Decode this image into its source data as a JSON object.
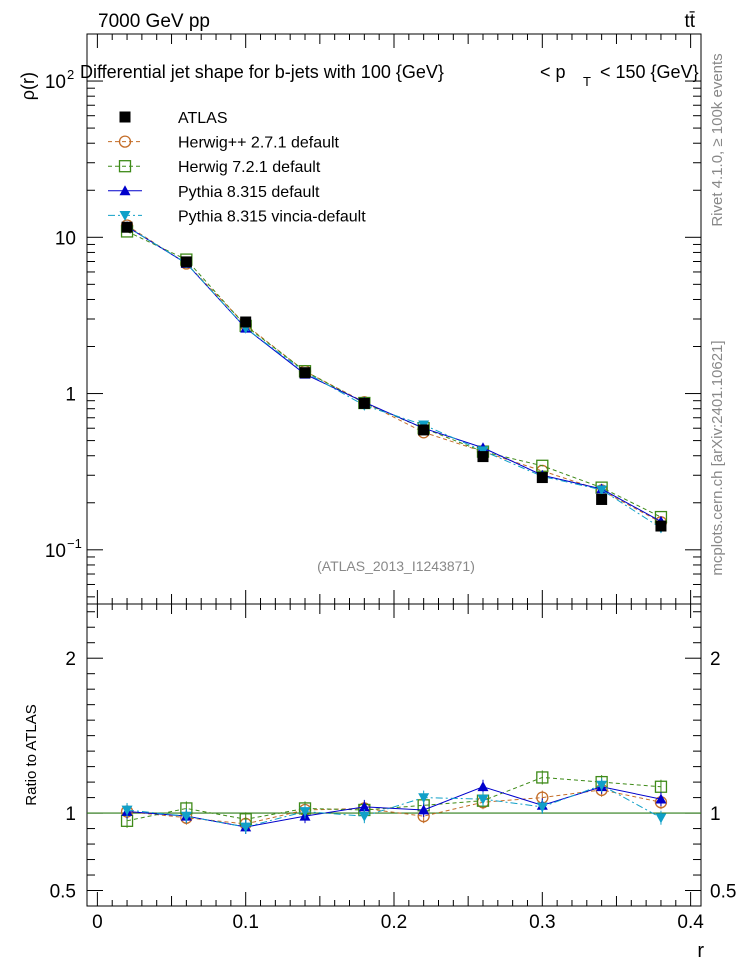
{
  "header": {
    "energy_label": "7000 GeV pp",
    "process_label": "tt̄",
    "side_rivet": "Rivet 4.1.0, ≥ 100k events",
    "side_mcplots": "mcplots.cern.ch [arXiv:2401.10621]"
  },
  "chart_data": {
    "type": "line",
    "title": "Differential jet shape for b-jets with 100 {GeV}",
    "title_suffix_lt": "< p",
    "title_suffix_sub": "T",
    "title_suffix_rest": "< 150 {GeV}",
    "ylabel": "ρ(r)",
    "xlabel": "r",
    "watermark": "(ATLAS_2013_I1243871)",
    "xlim": [
      -0.007,
      0.407
    ],
    "ylim": [
      0.045,
      200
    ],
    "log_y": true,
    "y_ticks": [
      {
        "value": 100,
        "label": "10",
        "exp": "2"
      },
      {
        "value": 10,
        "label": "10",
        "exp": ""
      },
      {
        "value": 1,
        "label": "1",
        "exp": ""
      },
      {
        "value": 0.1,
        "label": "10",
        "exp": "−1"
      }
    ],
    "x": [
      0.02,
      0.06,
      0.1,
      0.14,
      0.18,
      0.22,
      0.26,
      0.3,
      0.34,
      0.38
    ],
    "series": [
      {
        "name": "ATLAS",
        "color": "#000000",
        "marker": "square-filled",
        "line": "none",
        "values": [
          11.6,
          6.96,
          2.87,
          1.36,
          0.865,
          0.585,
          0.395,
          0.29,
          0.21,
          0.142
        ]
      },
      {
        "name": "Herwig++ 2.7.1 default",
        "color": "#c46d28",
        "marker": "circle-open",
        "line": "dashed",
        "values": [
          11.9,
          6.8,
          2.75,
          1.39,
          0.88,
          0.565,
          0.425,
          0.32,
          0.24,
          0.15
        ]
      },
      {
        "name": "Herwig 7.2.1 default",
        "color": "#3e8a18",
        "marker": "square-open",
        "line": "dashed",
        "values": [
          10.9,
          7.2,
          2.71,
          1.39,
          0.87,
          0.6,
          0.425,
          0.345,
          0.25,
          0.162
        ]
      },
      {
        "name": "Pythia 8.315 default",
        "color": "#0000cc",
        "marker": "triangle-up",
        "line": "solid",
        "values": [
          11.7,
          6.8,
          2.62,
          1.33,
          0.88,
          0.6,
          0.45,
          0.3,
          0.245,
          0.152
        ]
      },
      {
        "name": "Pythia 8.315 vincia-default",
        "color": "#10a0c8",
        "marker": "triangle-down",
        "line": "dashdot",
        "values": [
          11.7,
          6.83,
          2.62,
          1.37,
          0.84,
          0.63,
          0.43,
          0.295,
          0.242,
          0.138
        ]
      }
    ],
    "ratio": {
      "ylabel": "Ratio to ATLAS",
      "ylim": [
        0.4,
        2.35
      ],
      "y_ticks": [
        {
          "value": 2,
          "label": "2"
        },
        {
          "value": 1,
          "label": "1"
        },
        {
          "value": 0.5,
          "label": "0.5"
        }
      ],
      "x_ticks": [
        {
          "value": 0,
          "label": "0"
        },
        {
          "value": 0.1,
          "label": "0.1"
        },
        {
          "value": 0.2,
          "label": "0.2"
        },
        {
          "value": 0.3,
          "label": "0.3"
        },
        {
          "value": 0.4,
          "label": "0.4"
        }
      ],
      "series": [
        {
          "name": "Herwig++ 2.7.1 default",
          "values": [
            1.01,
            0.97,
            0.93,
            1.02,
            1.03,
            0.98,
            1.07,
            1.1,
            1.15,
            1.07
          ]
        },
        {
          "name": "Herwig 7.2.1 default",
          "values": [
            0.95,
            1.03,
            0.96,
            1.03,
            1.02,
            1.05,
            1.08,
            1.23,
            1.2,
            1.17
          ]
        },
        {
          "name": "Pythia 8.315 default",
          "values": [
            1.01,
            0.98,
            0.91,
            0.98,
            1.04,
            1.02,
            1.17,
            1.05,
            1.17,
            1.09
          ]
        },
        {
          "name": "Pythia 8.315 vincia-default",
          "values": [
            1.02,
            0.98,
            0.91,
            1.01,
            0.98,
            1.1,
            1.09,
            1.04,
            1.18,
            0.97
          ]
        }
      ]
    }
  }
}
